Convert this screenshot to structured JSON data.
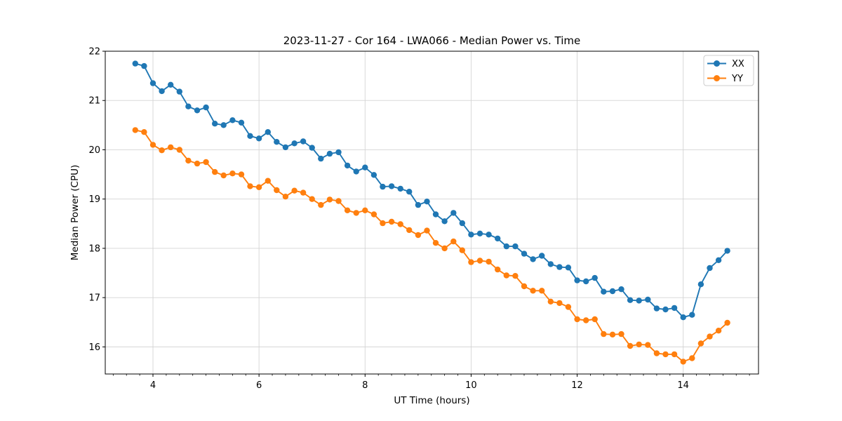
{
  "page": {
    "background": "#ffffff"
  },
  "chart_data": {
    "type": "line",
    "title": "2023-11-27 - Cor 164 - LWA066 - Median Power vs. Time",
    "xlabel": "UT Time (hours)",
    "ylabel": "Median Power (CPU)",
    "xlim": [
      3.1,
      15.42
    ],
    "ylim": [
      15.45,
      22.0
    ],
    "xticks": [
      4,
      6,
      8,
      10,
      12,
      14
    ],
    "x_minor_step": 0.25,
    "yticks": [
      16,
      17,
      18,
      19,
      20,
      21,
      22
    ],
    "grid": true,
    "legend": {
      "position": "upper right",
      "entries": [
        "XX",
        "YY"
      ]
    },
    "colors": {
      "XX": "#1f77b4",
      "YY": "#ff7f0e",
      "grid": "#d4d4d4",
      "spine": "#000000",
      "legend_border": "#cccccc",
      "text": "#000000"
    },
    "x": [
      3.667,
      3.833,
      4.0,
      4.167,
      4.333,
      4.5,
      4.667,
      4.833,
      5.0,
      5.167,
      5.333,
      5.5,
      5.667,
      5.833,
      6.0,
      6.167,
      6.333,
      6.5,
      6.667,
      6.833,
      7.0,
      7.167,
      7.333,
      7.5,
      7.667,
      7.833,
      8.0,
      8.167,
      8.333,
      8.5,
      8.667,
      8.833,
      9.0,
      9.167,
      9.333,
      9.5,
      9.667,
      9.833,
      10.0,
      10.167,
      10.333,
      10.5,
      10.667,
      10.833,
      11.0,
      11.167,
      11.333,
      11.5,
      11.667,
      11.833,
      12.0,
      12.167,
      12.333,
      12.5,
      12.667,
      12.833,
      13.0,
      13.167,
      13.333,
      13.5,
      13.667,
      13.833,
      14.0,
      14.167,
      14.333,
      14.5,
      14.667,
      14.833
    ],
    "series": [
      {
        "name": "XX",
        "color": "#1f77b4",
        "marker": "circle",
        "values": [
          21.75,
          21.7,
          21.35,
          21.19,
          21.32,
          21.18,
          20.88,
          20.8,
          20.86,
          20.53,
          20.5,
          20.6,
          20.55,
          20.28,
          20.23,
          20.36,
          20.16,
          20.05,
          20.13,
          20.17,
          20.04,
          19.82,
          19.92,
          19.95,
          19.68,
          19.56,
          19.64,
          19.49,
          19.25,
          19.26,
          19.21,
          19.15,
          18.88,
          18.95,
          18.69,
          18.55,
          18.72,
          18.51,
          18.28,
          18.3,
          18.28,
          18.2,
          18.04,
          18.04,
          17.89,
          17.78,
          17.85,
          17.68,
          17.62,
          17.61,
          17.35,
          17.33,
          17.4,
          17.12,
          17.13,
          17.17,
          16.95,
          16.94,
          16.96,
          16.78,
          16.76,
          16.79,
          16.6,
          16.65,
          17.27,
          17.6,
          17.76,
          17.95
        ]
      },
      {
        "name": "YY",
        "color": "#ff7f0e",
        "marker": "circle",
        "values": [
          20.4,
          20.36,
          20.1,
          19.99,
          20.05,
          20.0,
          19.78,
          19.72,
          19.75,
          19.55,
          19.48,
          19.52,
          19.5,
          19.26,
          19.24,
          19.37,
          19.18,
          19.05,
          19.17,
          19.13,
          19.0,
          18.88,
          18.99,
          18.96,
          18.77,
          18.72,
          18.77,
          18.69,
          18.51,
          18.54,
          18.49,
          18.37,
          18.27,
          18.36,
          18.11,
          18.0,
          18.14,
          17.96,
          17.72,
          17.75,
          17.73,
          17.57,
          17.45,
          17.44,
          17.23,
          17.14,
          17.14,
          16.92,
          16.89,
          16.81,
          16.56,
          16.54,
          16.56,
          16.26,
          16.25,
          16.26,
          16.02,
          16.05,
          16.04,
          15.87,
          15.85,
          15.85,
          15.7,
          15.77,
          16.07,
          16.21,
          16.33,
          16.49
        ]
      }
    ]
  }
}
